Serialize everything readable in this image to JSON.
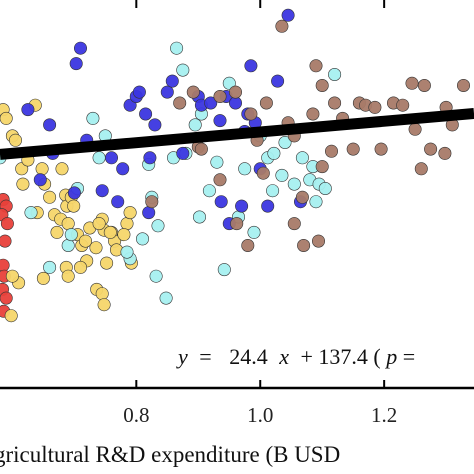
{
  "chart_data": {
    "type": "scatter",
    "xlabel": "gricultural R&D expenditure (B USD",
    "x_ticks": [
      "0.8",
      "1.0",
      "1.2"
    ],
    "x_tick_values": [
      0.8,
      1.0,
      1.2
    ],
    "xlim": [
      0.58,
      1.345
    ],
    "ylim": [
      45,
      222
    ],
    "equation": {
      "y": "y",
      "eq": "=",
      "body": "24.4",
      "x": "x",
      "rest": "+ 137.4  (",
      "p": "p",
      "tail": " ="
    },
    "trend": {
      "slope": 24.4,
      "intercept": 137.4,
      "x_range": [
        0.58,
        1.345
      ]
    },
    "colors": {
      "red": "#e8403a",
      "gold": "#f5d66a",
      "cyan": "#a6f0f0",
      "blue": "#3b36e0",
      "brown": "#a87a68",
      "line": "#000000",
      "frame": "#000000"
    },
    "series": [
      {
        "color_key": "red",
        "points": [
          [
            0.585,
            131
          ],
          [
            0.59,
            128
          ],
          [
            0.583,
            124
          ],
          [
            0.592,
            120
          ],
          [
            0.588,
            112
          ],
          [
            0.585,
            101
          ],
          [
            0.587,
            96
          ],
          [
            0.584,
            90
          ],
          [
            0.59,
            86
          ],
          [
            0.586,
            80
          ]
        ]
      },
      {
        "color_key": "gold",
        "points": [
          [
            0.585,
            172
          ],
          [
            0.59,
            168
          ],
          [
            0.6,
            160
          ],
          [
            0.605,
            158
          ],
          [
            0.615,
            145
          ],
          [
            0.617,
            138
          ],
          [
            0.625,
            149
          ],
          [
            0.637,
            174
          ],
          [
            0.648,
            145
          ],
          [
            0.652,
            138
          ],
          [
            0.66,
            132
          ],
          [
            0.668,
            124
          ],
          [
            0.672,
            116
          ],
          [
            0.678,
            122
          ],
          [
            0.68,
            145
          ],
          [
            0.686,
            133
          ],
          [
            0.688,
            128
          ],
          [
            0.69,
            120
          ],
          [
            0.695,
            132
          ],
          [
            0.699,
            128
          ],
          [
            0.705,
            115
          ],
          [
            0.712,
            110
          ],
          [
            0.718,
            112
          ],
          [
            0.725,
            118
          ],
          [
            0.72,
            103
          ],
          [
            0.735,
            109
          ],
          [
            0.745,
            122
          ],
          [
            0.748,
            117
          ],
          [
            0.752,
            102
          ],
          [
            0.76,
            116
          ],
          [
            0.765,
            112
          ],
          [
            0.768,
            108
          ],
          [
            0.785,
            120
          ],
          [
            0.79,
            125
          ],
          [
            0.792,
            102
          ],
          [
            0.61,
            93
          ],
          [
            0.6,
            96
          ],
          [
            0.598,
            78
          ],
          [
            0.65,
            95
          ],
          [
            0.687,
            100
          ],
          [
            0.69,
            96
          ],
          [
            0.71,
            100
          ],
          [
            0.736,
            90
          ],
          [
            0.745,
            88
          ],
          [
            0.748,
            83
          ],
          [
            0.758,
            116
          ],
          [
            0.78,
            115
          ],
          [
            0.74,
            120
          ],
          [
            0.64,
            125
          ]
        ]
      },
      {
        "color_key": "cyan",
        "points": [
          [
            0.58,
            150
          ],
          [
            0.63,
            125
          ],
          [
            0.66,
            100
          ],
          [
            0.69,
            110
          ],
          [
            0.695,
            115
          ],
          [
            0.705,
            136
          ],
          [
            0.73,
            168
          ],
          [
            0.74,
            150
          ],
          [
            0.75,
            160
          ],
          [
            0.79,
            104
          ],
          [
            0.785,
            107
          ],
          [
            0.81,
            113
          ],
          [
            0.82,
            147
          ],
          [
            0.825,
            132
          ],
          [
            0.835,
            119
          ],
          [
            0.865,
            200
          ],
          [
            0.875,
            190
          ],
          [
            0.895,
            165
          ],
          [
            0.905,
            170
          ],
          [
            0.918,
            135
          ],
          [
            0.93,
            148
          ],
          [
            0.95,
            184
          ],
          [
            0.965,
            123
          ],
          [
            0.975,
            145
          ],
          [
            1.0,
            160
          ],
          [
            1.012,
            150
          ],
          [
            1.02,
            135
          ],
          [
            1.022,
            152
          ],
          [
            1.035,
            142
          ],
          [
            1.055,
            138
          ],
          [
            1.068,
            150
          ],
          [
            1.08,
            140
          ],
          [
            1.085,
            146
          ],
          [
            1.09,
            130
          ],
          [
            1.095,
            138
          ],
          [
            1.105,
            136
          ],
          [
            1.12,
            188
          ],
          [
            0.832,
            96
          ],
          [
            0.848,
            86
          ],
          [
            0.942,
            99
          ],
          [
            0.99,
            116
          ],
          [
            0.902,
            123
          ],
          [
            0.86,
            150
          ],
          [
            0.88,
            152
          ],
          [
            1.04,
            157
          ]
        ]
      },
      {
        "color_key": "blue",
        "points": [
          [
            0.625,
            172
          ],
          [
            0.645,
            140
          ],
          [
            0.66,
            165
          ],
          [
            0.665,
            152
          ],
          [
            0.7,
            134
          ],
          [
            0.72,
            158
          ],
          [
            0.745,
            135
          ],
          [
            0.76,
            150
          ],
          [
            0.77,
            130
          ],
          [
            0.778,
            145
          ],
          [
            0.79,
            174
          ],
          [
            0.8,
            178
          ],
          [
            0.805,
            180
          ],
          [
            0.815,
            170
          ],
          [
            0.82,
            125
          ],
          [
            0.83,
            165
          ],
          [
            0.85,
            180
          ],
          [
            0.858,
            185
          ],
          [
            0.9,
            178
          ],
          [
            0.905,
            174
          ],
          [
            0.92,
            175
          ],
          [
            0.935,
            167
          ],
          [
            0.945,
            178
          ],
          [
            0.96,
            175
          ],
          [
            0.975,
            162
          ],
          [
            0.98,
            170
          ],
          [
            0.985,
            192
          ],
          [
            0.992,
            166
          ],
          [
            1.0,
            145
          ],
          [
            1.012,
            128
          ],
          [
            1.028,
            185
          ],
          [
            1.045,
            215
          ],
          [
            1.065,
            130
          ],
          [
            0.875,
            152
          ],
          [
            0.95,
            120
          ],
          [
            0.937,
            130
          ],
          [
            0.97,
            128
          ],
          [
            0.822,
            150
          ],
          [
            0.71,
            200
          ],
          [
            0.703,
            193
          ]
        ]
      },
      {
        "color_key": "brown",
        "points": [
          [
            0.825,
            130
          ],
          [
            0.87,
            175
          ],
          [
            0.9,
            155
          ],
          [
            0.905,
            154
          ],
          [
            0.935,
            178
          ],
          [
            0.96,
            180
          ],
          [
            0.985,
            170
          ],
          [
            0.995,
            158
          ],
          [
            1.005,
            143
          ],
          [
            1.01,
            175
          ],
          [
            1.045,
            166
          ],
          [
            1.055,
            160
          ],
          [
            1.068,
            132
          ],
          [
            1.085,
            170
          ],
          [
            1.09,
            192
          ],
          [
            1.1,
            183
          ],
          [
            1.115,
            153
          ],
          [
            1.12,
            175
          ],
          [
            1.133,
            168
          ],
          [
            1.16,
            175
          ],
          [
            1.17,
            174
          ],
          [
            1.185,
            173
          ],
          [
            1.195,
            154
          ],
          [
            1.215,
            175
          ],
          [
            1.23,
            174
          ],
          [
            1.245,
            184
          ],
          [
            1.25,
            163
          ],
          [
            1.265,
            183
          ],
          [
            1.275,
            154
          ],
          [
            1.298,
            152
          ],
          [
            1.31,
            165
          ],
          [
            1.328,
            183
          ],
          [
            1.3,
            173
          ],
          [
            0.892,
            180
          ],
          [
            0.935,
            140
          ],
          [
            1.035,
            210
          ],
          [
            1.055,
            120
          ],
          [
            1.07,
            110
          ],
          [
            1.094,
            112
          ],
          [
            0.98,
            110
          ],
          [
            0.962,
            120
          ],
          [
            1.15,
            154
          ],
          [
            1.26,
            145
          ],
          [
            1.1,
            146
          ]
        ]
      }
    ]
  }
}
